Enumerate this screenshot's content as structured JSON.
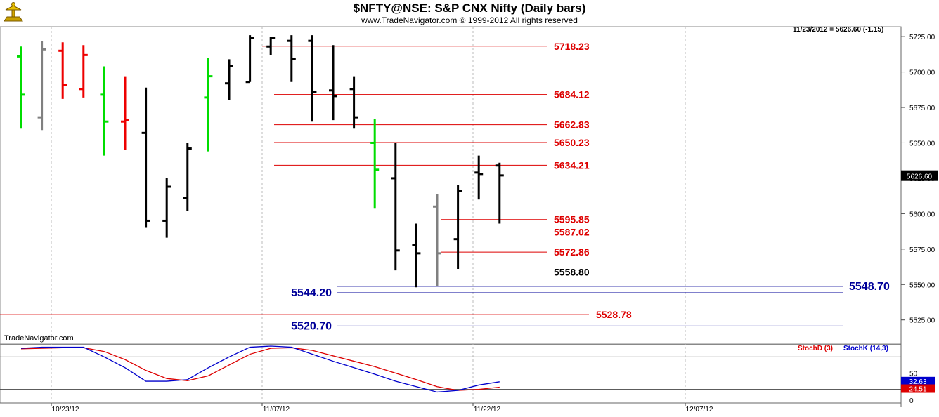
{
  "header": {
    "title": "$NFTY@NSE:  S&P CNX Nifty  (Daily bars)",
    "subtitle": "www.TradeNavigator.com © 1999-2012 All rights reserved",
    "status": "11/23/2012 = 5626.60 (-1.15)",
    "brand": "TradeNavigator.com"
  },
  "colors": {
    "up": "#00dd00",
    "down": "#ee0000",
    "neutral": "#000000",
    "doji": "#808080",
    "resistance": "#dd0000",
    "support": "#000099",
    "stochD": "#dd0000",
    "stochK": "#0000cc"
  },
  "chart_data": {
    "type": "ohlc",
    "y_range": [
      5508,
      5732
    ],
    "y_ticks": [
      5725,
      5700,
      5675,
      5650,
      5625,
      5600,
      5575,
      5550,
      5525
    ],
    "y_tick_labels": [
      "5725.00",
      "5700.00",
      "5675.00",
      "5650.00",
      "5625.00",
      "5600.00",
      "5575.00",
      "5550.00",
      "5525.00"
    ],
    "x_labels": [
      "10/23/12",
      "11/07/12",
      "11/22/12",
      "12/07/12"
    ],
    "last_price_label": "5626.60",
    "bars": [
      {
        "o": 5711,
        "h": 5718,
        "l": 5660,
        "c": 5684,
        "color": "up"
      },
      {
        "o": 5668,
        "h": 5722,
        "l": 5659,
        "c": 5716,
        "color": "doji"
      },
      {
        "o": 5715,
        "h": 5721,
        "l": 5681,
        "c": 5691,
        "color": "down"
      },
      {
        "o": 5688,
        "h": 5719,
        "l": 5682,
        "c": 5712,
        "color": "down"
      },
      {
        "o": 5684,
        "h": 5704,
        "l": 5641,
        "c": 5665,
        "color": "up"
      },
      {
        "o": 5665,
        "h": 5697,
        "l": 5645,
        "c": 5666,
        "color": "down"
      },
      {
        "o": 5657,
        "h": 5689,
        "l": 5590,
        "c": 5595,
        "color": "neutral"
      },
      {
        "o": 5595,
        "h": 5625,
        "l": 5583,
        "c": 5619,
        "color": "neutral"
      },
      {
        "o": 5611,
        "h": 5650,
        "l": 5602,
        "c": 5646,
        "color": "neutral"
      },
      {
        "o": 5682,
        "h": 5710,
        "l": 5644,
        "c": 5697,
        "color": "up"
      },
      {
        "o": 5692,
        "h": 5709,
        "l": 5680,
        "c": 5704,
        "color": "neutral"
      },
      {
        "o": 5693,
        "h": 5726,
        "l": 5693,
        "c": 5724,
        "color": "neutral"
      },
      {
        "o": 5718,
        "h": 5725,
        "l": 5712,
        "c": 5724,
        "color": "neutral"
      },
      {
        "o": 5722,
        "h": 5726,
        "l": 5693,
        "c": 5709,
        "color": "neutral"
      },
      {
        "o": 5722,
        "h": 5726,
        "l": 5665,
        "c": 5686,
        "color": "neutral"
      },
      {
        "o": 5687,
        "h": 5719,
        "l": 5666,
        "c": 5683,
        "color": "neutral"
      },
      {
        "o": 5688,
        "h": 5697,
        "l": 5660,
        "c": 5668,
        "color": "neutral"
      },
      {
        "o": 5650,
        "h": 5667,
        "l": 5604,
        "c": 5631,
        "color": "up"
      },
      {
        "o": 5625,
        "h": 5650,
        "l": 5560,
        "c": 5574,
        "color": "neutral"
      },
      {
        "o": 5578,
        "h": 5593,
        "l": 5548,
        "c": 5572,
        "color": "neutral"
      },
      {
        "o": 5605,
        "h": 5614,
        "l": 5549,
        "c": 5572,
        "color": "doji"
      },
      {
        "o": 5582,
        "h": 5620,
        "l": 5561,
        "c": 5616,
        "color": "neutral"
      },
      {
        "o": 5629,
        "h": 5641,
        "l": 5610,
        "c": 5628,
        "color": "neutral"
      },
      {
        "o": 5634,
        "h": 5636,
        "l": 5593,
        "c": 5627,
        "color": "neutral"
      }
    ],
    "resistance_levels": [
      {
        "label": "5718.23",
        "value": 5718.23
      },
      {
        "label": "5684.12",
        "value": 5684.12
      },
      {
        "label": "5662.83",
        "value": 5662.83
      },
      {
        "label": "5650.23",
        "value": 5650.23
      },
      {
        "label": "5634.21",
        "value": 5634.21
      },
      {
        "label": "5595.85",
        "value": 5595.85
      },
      {
        "label": "5587.02",
        "value": 5587.02
      },
      {
        "label": "5572.86",
        "value": 5572.86
      }
    ],
    "black_level": {
      "label": "5558.80",
      "value": 5558.8
    },
    "support_levels": [
      {
        "label": "5548.70",
        "value": 5548.7
      },
      {
        "label": "5544.20",
        "value": 5544.2
      },
      {
        "label": "5520.70",
        "value": 5520.7
      }
    ],
    "red_long_level": {
      "label": "5528.78",
      "value": 5528.78
    },
    "stochastic": {
      "legend_d": "StochD (3)",
      "legend_k": "StochK (14,3)",
      "y_tick_labels": [
        "50",
        "0"
      ],
      "k_label": "32.63",
      "d_label": "24.51",
      "k_values": [
        96,
        98,
        98,
        98,
        80,
        60,
        35,
        35,
        38,
        60,
        80,
        98,
        100,
        98,
        85,
        72,
        60,
        48,
        35,
        25,
        15,
        18,
        28,
        34
      ],
      "d_values": [
        95,
        96,
        97,
        97,
        90,
        75,
        55,
        40,
        36,
        45,
        65,
        85,
        96,
        97,
        92,
        82,
        72,
        62,
        50,
        38,
        25,
        18,
        20,
        24
      ]
    }
  }
}
